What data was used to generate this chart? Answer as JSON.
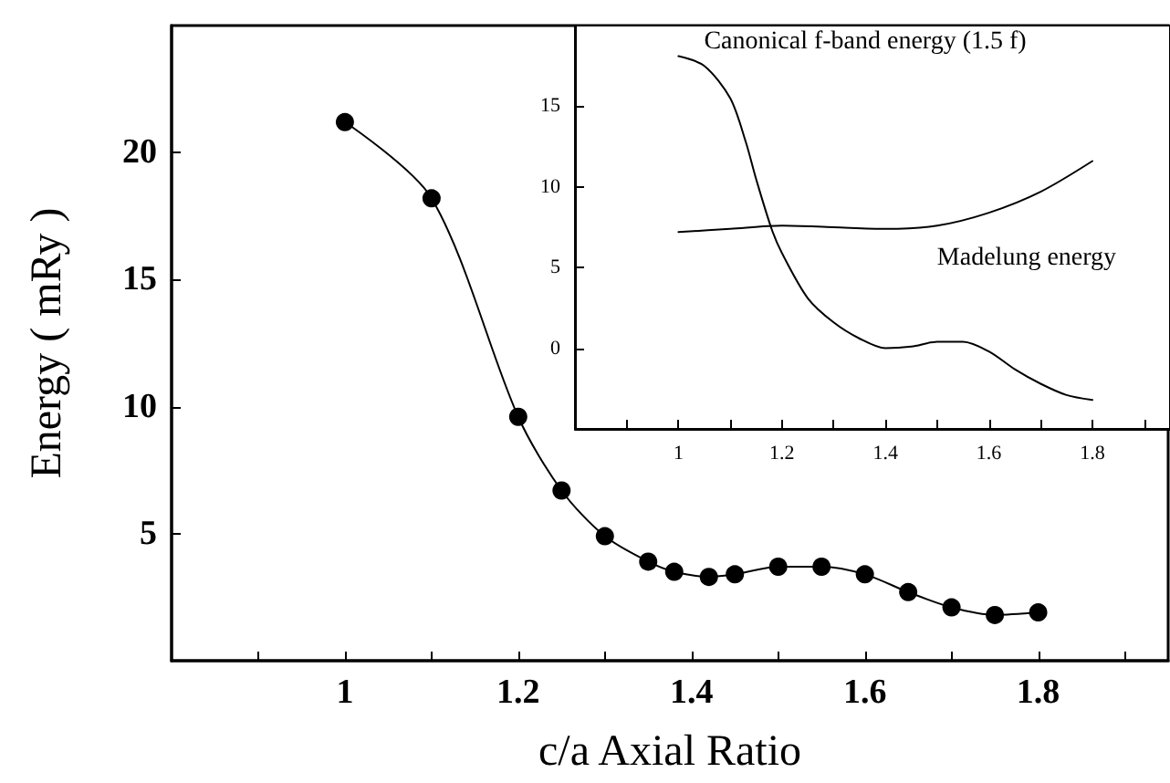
{
  "chart_data": [
    {
      "type": "line",
      "xlabel": "c/a Axial Ratio",
      "ylabel": "Energy ( mRy )",
      "marker": "circle",
      "line_style": "solid",
      "x": [
        1,
        1.1,
        1.2,
        1.25,
        1.3,
        1.35,
        1.38,
        1.42,
        1.45,
        1.5,
        1.55,
        1.6,
        1.65,
        1.7,
        1.75,
        1.8
      ],
      "series": [
        {
          "color": "#000000",
          "values": [
            21.2,
            18.2,
            9.6,
            6.7,
            4.9,
            3.9,
            3.5,
            3.3,
            3.4,
            3.7,
            3.7,
            3.4,
            2.7,
            2.1,
            1.8,
            1.9
          ]
        }
      ],
      "xlim": [
        0.8,
        1.95
      ],
      "ylim": [
        0,
        25
      ],
      "xticks": [
        {
          "value": 0.9,
          "label": null
        },
        1,
        {
          "value": 1.1,
          "label": null
        },
        1.2,
        {
          "value": 1.3,
          "label": null
        },
        1.4,
        {
          "value": 1.5,
          "label": null
        },
        1.6,
        {
          "value": 1.7,
          "label": null
        },
        1.8,
        {
          "value": 1.9,
          "label": null
        }
      ],
      "yticks": [
        5,
        10,
        15,
        20
      ]
    },
    {
      "type": "line",
      "marker": "none",
      "line_style": "solid",
      "series": [
        {
          "name": "Canonical f-band energy (1.5 f)",
          "color": "#000000",
          "x": [
            1,
            1.05,
            1.1,
            1.13,
            1.15,
            1.18,
            1.2,
            1.25,
            1.3,
            1.35,
            1.4,
            1.45,
            1.5,
            1.55,
            1.6,
            1.65,
            1.7,
            1.75,
            1.8
          ],
          "values": [
            18.1,
            17.5,
            15.5,
            12.8,
            10.5,
            7.4,
            5.9,
            3.1,
            1.6,
            0.6,
            0,
            0.1,
            0.4,
            0.4,
            -0.2,
            -1.3,
            -2.2,
            -2.9,
            -3.2
          ]
        },
        {
          "name": "Madelung energy",
          "color": "#000000",
          "x": [
            1,
            1.1,
            1.2,
            1.3,
            1.4,
            1.5,
            1.6,
            1.7,
            1.8
          ],
          "values": [
            7.2,
            7.4,
            7.6,
            7.5,
            7.4,
            7.6,
            8.4,
            9.7,
            11.6
          ]
        }
      ],
      "xlim": [
        0.8,
        1.95
      ],
      "ylim": [
        -5,
        20
      ],
      "xticks": [
        {
          "value": 0.9,
          "label": null
        },
        1,
        {
          "value": 1.1,
          "label": null
        },
        1.2,
        {
          "value": 1.3,
          "label": null
        },
        1.4,
        {
          "value": 1.5,
          "label": null
        },
        1.6,
        {
          "value": 1.7,
          "label": null
        },
        1.8,
        {
          "value": 1.9,
          "label": null
        }
      ],
      "yticks": [
        0,
        5,
        10,
        15
      ]
    }
  ]
}
